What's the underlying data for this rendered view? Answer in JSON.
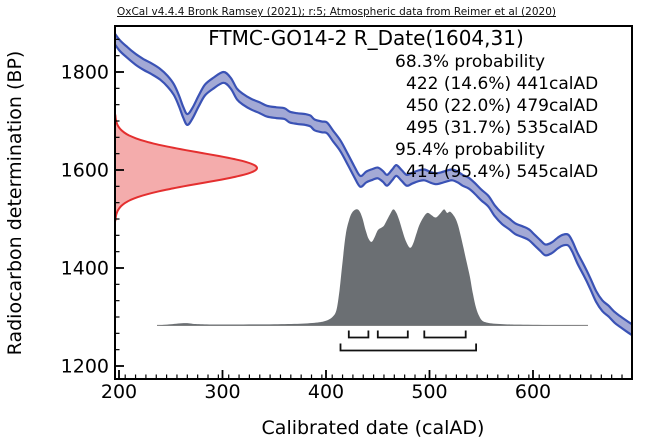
{
  "credit": "OxCal v4.4.4 Bronk Ramsey (2021); r:5; Atmospheric data from Reimer et al (2020)",
  "chart_data": {
    "type": "area",
    "title": "FTMC-GO14-2 R_Date(1604,31)",
    "xlabel": "Calibrated date (calAD)",
    "ylabel": "Radiocarbon determination (BP)",
    "x_axis": {
      "min": 196,
      "max": 696,
      "major_ticks": [
        200,
        300,
        400,
        500,
        600
      ],
      "minor_step": 10
    },
    "y_axis": {
      "min": 1173,
      "max": 1894,
      "major_ticks": [
        1200,
        1400,
        1600,
        1800
      ],
      "minor_per_major": 6
    },
    "annotations": [
      {
        "text": "68.3% probability",
        "indent": 0
      },
      {
        "text": "422 (14.6%) 441calAD",
        "indent": 1
      },
      {
        "text": "450 (22.0%) 479calAD",
        "indent": 1
      },
      {
        "text": "495 (31.7%) 535calAD",
        "indent": 1
      },
      {
        "text": "95.4% probability",
        "indent": 0
      },
      {
        "text": "414 (95.4%) 545calAD",
        "indent": 1
      }
    ],
    "likelihood": {
      "mean_bp": 1604,
      "sigma_bp": 31
    },
    "ranges_68": [
      [
        422,
        441
      ],
      [
        450,
        479
      ],
      [
        495,
        535
      ]
    ],
    "ranges_95": [
      [
        414,
        545
      ]
    ],
    "calibration_curve": {
      "half_width_bp": 11,
      "points": [
        [
          191,
          1883
        ],
        [
          200,
          1856
        ],
        [
          208,
          1840
        ],
        [
          216,
          1826
        ],
        [
          224,
          1815
        ],
        [
          232,
          1806
        ],
        [
          240,
          1795
        ],
        [
          247,
          1781
        ],
        [
          253,
          1764
        ],
        [
          258,
          1741
        ],
        [
          262,
          1718
        ],
        [
          266,
          1703
        ],
        [
          271,
          1716
        ],
        [
          277,
          1741
        ],
        [
          283,
          1763
        ],
        [
          291,
          1777
        ],
        [
          301,
          1789
        ],
        [
          308,
          1777
        ],
        [
          314,
          1755
        ],
        [
          320,
          1744
        ],
        [
          328,
          1734
        ],
        [
          336,
          1727
        ],
        [
          343,
          1720
        ],
        [
          352,
          1717
        ],
        [
          360,
          1715
        ],
        [
          365,
          1708
        ],
        [
          372,
          1705
        ],
        [
          380,
          1703
        ],
        [
          385,
          1700
        ],
        [
          389,
          1692
        ],
        [
          396,
          1688
        ],
        [
          401,
          1686
        ],
        [
          407,
          1669
        ],
        [
          414,
          1649
        ],
        [
          421,
          1622
        ],
        [
          427,
          1598
        ],
        [
          433,
          1577
        ],
        [
          439,
          1586
        ],
        [
          445,
          1591
        ],
        [
          450,
          1594
        ],
        [
          455,
          1587
        ],
        [
          459,
          1579
        ],
        [
          464,
          1590
        ],
        [
          468,
          1599
        ],
        [
          473,
          1589
        ],
        [
          478,
          1579
        ],
        [
          483,
          1583
        ],
        [
          489,
          1588
        ],
        [
          495,
          1590
        ],
        [
          501,
          1585
        ],
        [
          506,
          1582
        ],
        [
          511,
          1584
        ],
        [
          517,
          1588
        ],
        [
          522,
          1590
        ],
        [
          527,
          1586
        ],
        [
          532,
          1579
        ],
        [
          538,
          1573
        ],
        [
          544,
          1562
        ],
        [
          550,
          1549
        ],
        [
          557,
          1536
        ],
        [
          563,
          1517
        ],
        [
          570,
          1501
        ],
        [
          577,
          1490
        ],
        [
          583,
          1480
        ],
        [
          590,
          1474
        ],
        [
          596,
          1468
        ],
        [
          602,
          1456
        ],
        [
          607,
          1446
        ],
        [
          612,
          1437
        ],
        [
          618,
          1441
        ],
        [
          624,
          1451
        ],
        [
          629,
          1457
        ],
        [
          634,
          1457
        ],
        [
          638,
          1444
        ],
        [
          643,
          1420
        ],
        [
          649,
          1396
        ],
        [
          655,
          1370
        ],
        [
          661,
          1342
        ],
        [
          667,
          1323
        ],
        [
          673,
          1312
        ],
        [
          679,
          1299
        ],
        [
          684,
          1291
        ],
        [
          690,
          1282
        ],
        [
          697,
          1272
        ]
      ]
    },
    "posterior": {
      "points": [
        [
          237,
          0
        ],
        [
          250,
          0.01
        ],
        [
          264,
          0.02
        ],
        [
          274,
          0.012
        ],
        [
          290,
          0.008
        ],
        [
          320,
          0.008
        ],
        [
          350,
          0.01
        ],
        [
          375,
          0.015
        ],
        [
          392,
          0.025
        ],
        [
          400,
          0.04
        ],
        [
          406,
          0.07
        ],
        [
          410,
          0.13
        ],
        [
          413,
          0.3
        ],
        [
          416,
          0.55
        ],
        [
          419,
          0.78
        ],
        [
          422,
          0.9
        ],
        [
          425,
          0.97
        ],
        [
          429,
          1.0
        ],
        [
          432,
          0.99
        ],
        [
          435,
          0.93
        ],
        [
          438,
          0.83
        ],
        [
          441,
          0.75
        ],
        [
          444,
          0.72
        ],
        [
          447,
          0.76
        ],
        [
          450,
          0.82
        ],
        [
          453,
          0.84
        ],
        [
          456,
          0.86
        ],
        [
          459,
          0.91
        ],
        [
          462,
          0.96
        ],
        [
          465,
          1.0
        ],
        [
          468,
          0.97
        ],
        [
          471,
          0.9
        ],
        [
          474,
          0.81
        ],
        [
          477,
          0.73
        ],
        [
          481,
          0.67
        ],
        [
          484,
          0.7
        ],
        [
          487,
          0.78
        ],
        [
          490,
          0.86
        ],
        [
          494,
          0.93
        ],
        [
          498,
          0.97
        ],
        [
          502,
          0.95
        ],
        [
          506,
          0.93
        ],
        [
          510,
          0.96
        ],
        [
          514,
          1.0
        ],
        [
          517,
          0.97
        ],
        [
          520,
          0.98
        ],
        [
          524,
          0.94
        ],
        [
          527,
          0.88
        ],
        [
          530,
          0.78
        ],
        [
          533,
          0.66
        ],
        [
          536,
          0.54
        ],
        [
          539,
          0.42
        ],
        [
          542,
          0.27
        ],
        [
          545,
          0.15
        ],
        [
          548,
          0.08
        ],
        [
          551,
          0.04
        ],
        [
          555,
          0.025
        ],
        [
          560,
          0.017
        ],
        [
          568,
          0.012
        ],
        [
          578,
          0.008
        ],
        [
          595,
          0.005
        ],
        [
          615,
          0.003
        ],
        [
          640,
          0.002
        ],
        [
          653,
          0
        ]
      ]
    },
    "colors": {
      "band_fill": "#a3a9d5",
      "band_stroke": "#3a52b5",
      "likelihood_fill": "#f4acac",
      "likelihood_stroke": "#e42f2f",
      "posterior_fill": "#6b6f73",
      "baseline": "#8a8a8a",
      "axis": "#000000"
    }
  }
}
